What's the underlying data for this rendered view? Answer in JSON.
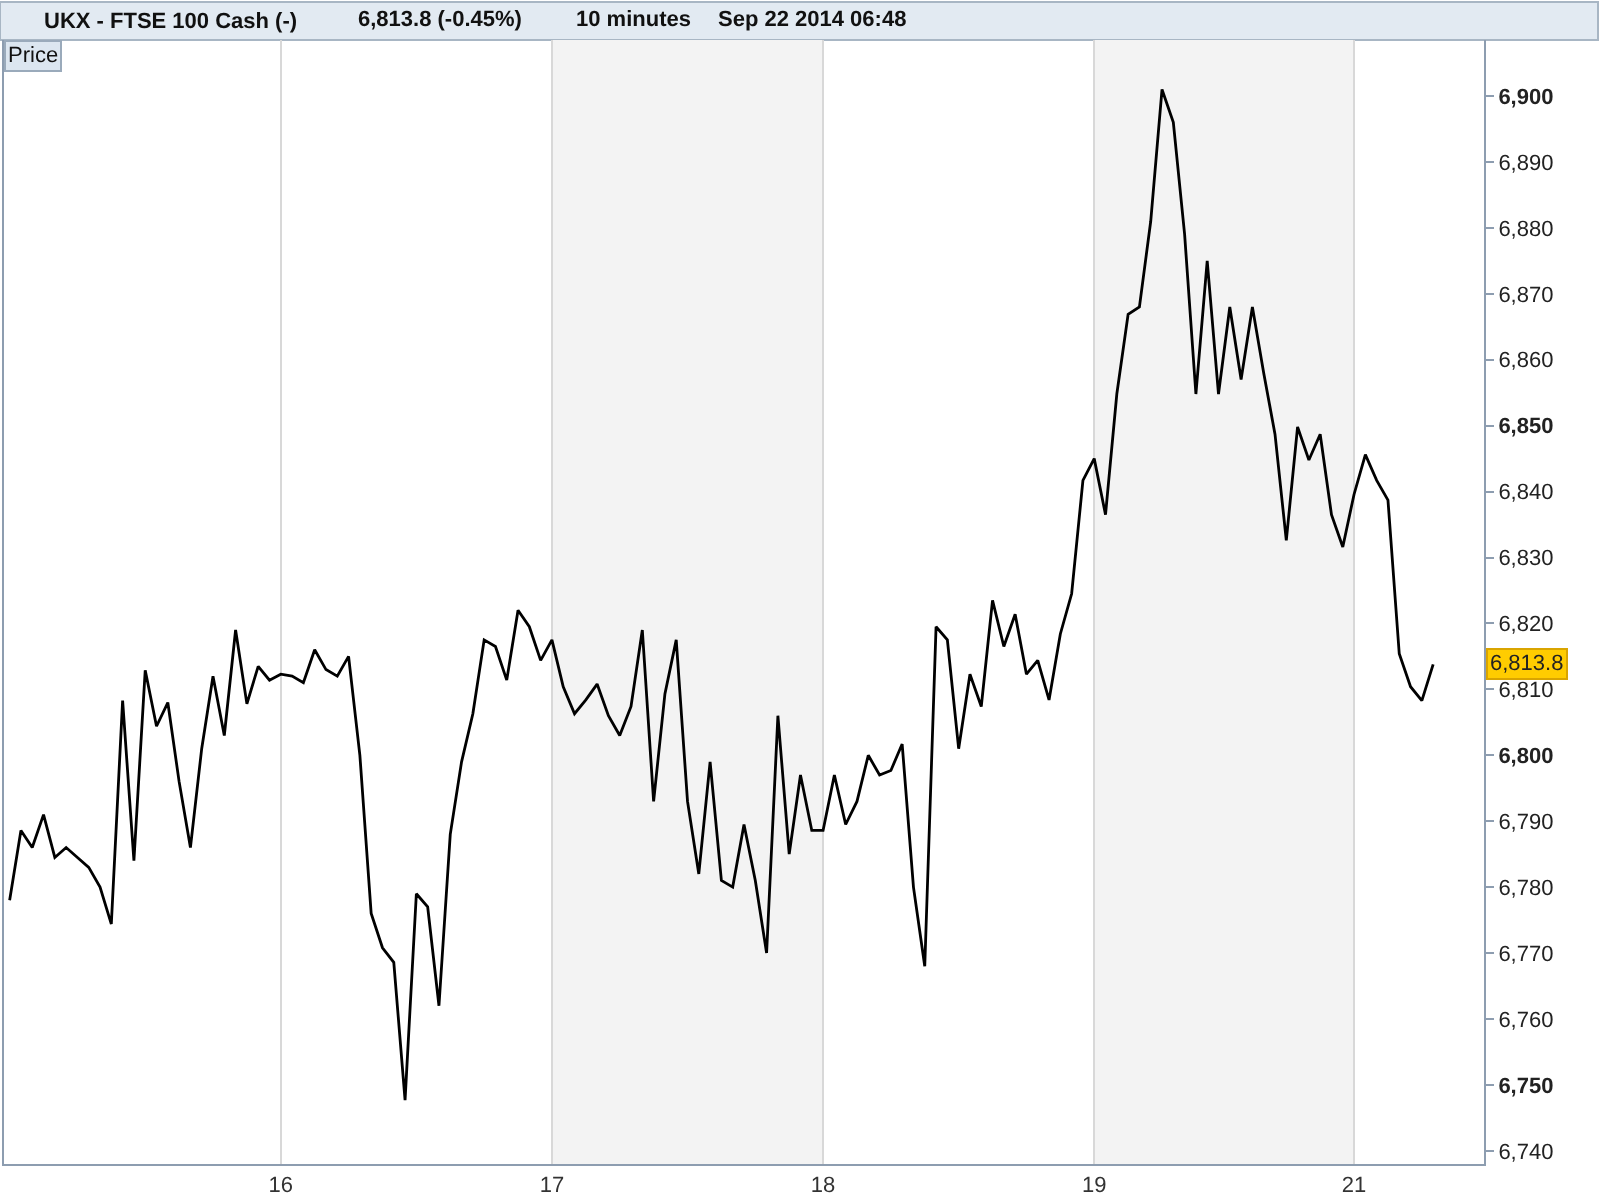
{
  "chart_data": {
    "type": "line",
    "title": "UKX - FTSE 100 Cash (-)",
    "subtitle": "6,813.8 (-0.45%)",
    "ylabel": "Price",
    "annotations": [
      "10 minutes",
      "Sep 22 2014 06:48",
      {
        "text": "6,813.8",
        "y": 6813.8
      }
    ],
    "color": "#000000",
    "grid": "x",
    "ylim": [
      6738,
      6908.5
    ],
    "yticks": [
      {
        "value": 6740,
        "label": "6,740"
      },
      {
        "value": 6750,
        "label": "6,750"
      },
      {
        "value": 6760,
        "label": "6,760"
      },
      {
        "value": 6770,
        "label": "6,770"
      },
      {
        "value": 6780,
        "label": "6,780"
      },
      {
        "value": 6790,
        "label": "6,790"
      },
      {
        "value": 6800,
        "label": "6,800"
      },
      {
        "value": 6810,
        "label": "6,810"
      },
      {
        "value": 6820,
        "label": "6,820"
      },
      {
        "value": 6830,
        "label": "6,830"
      },
      {
        "value": 6840,
        "label": "6,840"
      },
      {
        "value": 6850,
        "label": "6,850"
      },
      {
        "value": 6860,
        "label": "6,860"
      },
      {
        "value": 6870,
        "label": "6,870"
      },
      {
        "value": 6880,
        "label": "6,880"
      },
      {
        "value": 6890,
        "label": "6,890"
      },
      {
        "value": 6900,
        "label": "6,900"
      }
    ],
    "bands": [
      {
        "axis": "x",
        "from": "17",
        "to": "18",
        "color": "#f3f3f3"
      },
      {
        "axis": "x",
        "from": "19",
        "to": "21",
        "color": "#f3f3f3"
      }
    ],
    "categories": [
      null,
      null,
      null,
      null,
      null,
      null,
      null,
      null,
      null,
      null,
      null,
      null,
      null,
      null,
      null,
      null,
      null,
      null,
      null,
      null,
      null,
      null,
      null,
      null,
      "16",
      null,
      null,
      null,
      null,
      null,
      null,
      null,
      null,
      null,
      null,
      null,
      null,
      null,
      null,
      null,
      null,
      null,
      null,
      null,
      null,
      null,
      null,
      null,
      "17",
      null,
      null,
      null,
      null,
      null,
      null,
      null,
      null,
      null,
      null,
      null,
      null,
      null,
      null,
      null,
      null,
      null,
      null,
      null,
      null,
      null,
      null,
      null,
      "18",
      null,
      null,
      null,
      null,
      null,
      null,
      null,
      null,
      null,
      null,
      null,
      null,
      null,
      null,
      null,
      null,
      null,
      null,
      null,
      null,
      null,
      null,
      null,
      "19",
      null,
      null,
      null,
      null,
      null,
      null,
      null,
      null,
      null,
      null,
      null,
      null,
      null,
      null,
      null,
      null,
      null,
      null,
      null,
      null,
      null,
      null,
      "21",
      null,
      null,
      null,
      null,
      null,
      null,
      null,
      null,
      null,
      null,
      null
    ],
    "values": [
      6778,
      6788.6,
      6786,
      6791,
      6784.5,
      6786,
      6784.5,
      6783,
      6780,
      6774.4,
      6808.3,
      6784,
      6812.9,
      6804.4,
      6808,
      6796,
      6786,
      6801,
      6812,
      6803,
      6819,
      6807.8,
      6813.5,
      6811.4,
      6812.3,
      6812,
      6811,
      6816,
      6813,
      6812,
      6815,
      6800,
      6776,
      6770.8,
      6768.6,
      6747.7,
      6779,
      6777,
      6762,
      6788,
      6799,
      6806.3,
      6817.5,
      6816.5,
      6811.4,
      6822,
      6819.5,
      6814.4,
      6817.5,
      6810.4,
      6806.3,
      6808.4,
      6810.8,
      6806,
      6803,
      6807.4,
      6819,
      6793,
      6809.3,
      6817.5,
      6793,
      6782,
      6799,
      6781,
      6780,
      6789.5,
      6781,
      6770,
      6806,
      6785,
      6797,
      6788.6,
      6788.6,
      6797,
      6789.5,
      6793,
      6800,
      6797,
      6797.7,
      6801.7,
      6780,
      6768,
      6819.5,
      6817.5,
      6801,
      6812.3,
      6807.4,
      6823.5,
      6816.5,
      6821.4,
      6812.3,
      6814.4,
      6808.4,
      6818.4,
      6824.5,
      6841.7,
      6845,
      6836.5,
      6854.8,
      6866.9,
      6868,
      6881,
      6901,
      6896,
      6879,
      6854.8,
      6875,
      6854.8,
      6868,
      6857,
      6868,
      6858,
      6848.7,
      6832.6,
      6849.8,
      6844.8,
      6848.7,
      6836.5,
      6831.6,
      6839.6,
      6845.6,
      6841.7,
      6838.7,
      6815.4,
      6810.4,
      6808.3,
      6813.8,
      null,
      null,
      null,
      null
    ]
  }
}
